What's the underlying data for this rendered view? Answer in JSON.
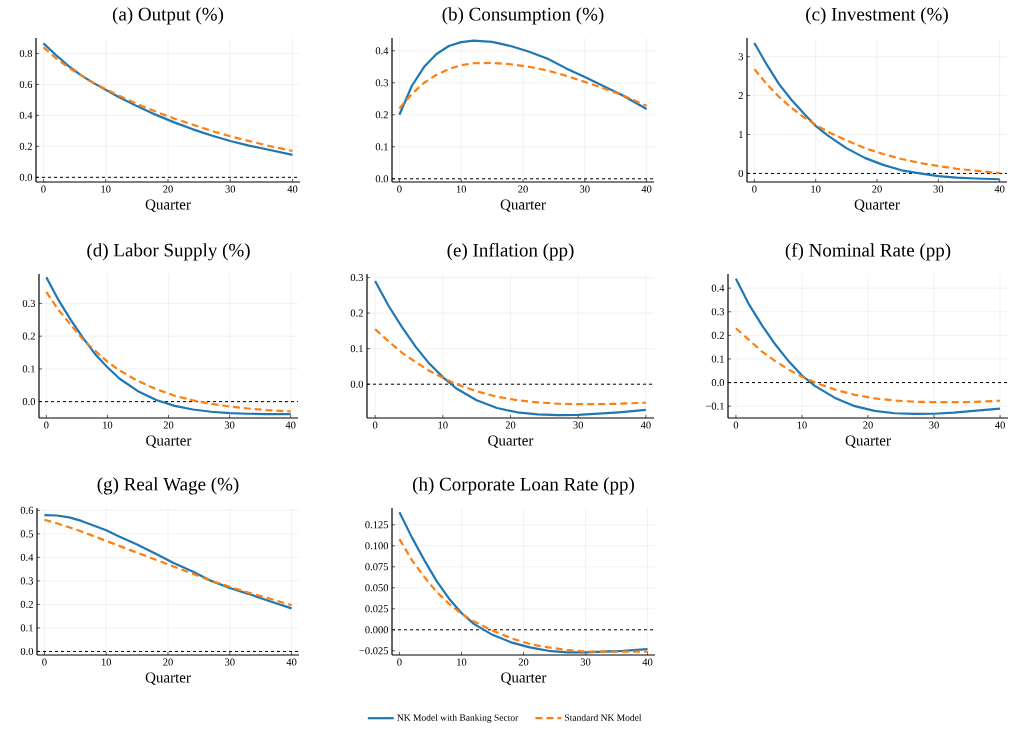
{
  "chart_data": [
    {
      "type": "line",
      "title": "(a) Output (%)",
      "xlabel": "Quarter",
      "x": [
        0,
        2,
        4,
        6,
        8,
        10,
        12,
        15,
        18,
        21,
        24,
        27,
        30,
        33,
        36,
        40
      ],
      "xlim": [
        -1.2,
        41.2
      ],
      "xticks": [
        0,
        10,
        20,
        30,
        40
      ],
      "ylim": [
        -0.03,
        0.9
      ],
      "yticks": [
        {
          "value": 0,
          "label": "0.0"
        },
        0.2,
        0.4,
        0.6,
        0.8
      ],
      "grid": true,
      "ref_lines": [
        {
          "axis": "y",
          "value": 0,
          "color": "#000000",
          "line_style": "dashed"
        }
      ],
      "series": [
        {
          "color": "#1f77b4",
          "line_style": "solid",
          "values": [
            0.865,
            0.79,
            0.72,
            0.66,
            0.61,
            0.565,
            0.52,
            0.46,
            0.405,
            0.355,
            0.31,
            0.27,
            0.235,
            0.205,
            0.18,
            0.145
          ]
        },
        {
          "color": "#ff7f0e",
          "line_style": "dashed",
          "values": [
            0.84,
            0.77,
            0.71,
            0.66,
            0.61,
            0.57,
            0.53,
            0.475,
            0.425,
            0.38,
            0.34,
            0.3,
            0.265,
            0.235,
            0.205,
            0.17
          ]
        }
      ]
    },
    {
      "type": "line",
      "title": "(b) Consumption (%)",
      "xlabel": "Quarter",
      "x": [
        0,
        2,
        4,
        6,
        8,
        10,
        12,
        15,
        18,
        21,
        24,
        27,
        30,
        33,
        36,
        40
      ],
      "xlim": [
        -1.2,
        41.2
      ],
      "xticks": [
        0,
        10,
        20,
        30,
        40
      ],
      "ylim": [
        -0.01,
        0.44
      ],
      "yticks": [
        {
          "value": 0,
          "label": "0.0"
        },
        0.1,
        0.2,
        0.3,
        0.4
      ],
      "grid": true,
      "ref_lines": [
        {
          "axis": "y",
          "value": 0,
          "color": "#000000",
          "line_style": "dashed"
        }
      ],
      "series": [
        {
          "color": "#1f77b4",
          "line_style": "solid",
          "values": [
            0.2,
            0.29,
            0.35,
            0.39,
            0.415,
            0.427,
            0.432,
            0.428,
            0.415,
            0.397,
            0.375,
            0.345,
            0.318,
            0.29,
            0.262,
            0.218
          ]
        },
        {
          "color": "#ff7f0e",
          "line_style": "dashed",
          "values": [
            0.22,
            0.265,
            0.3,
            0.325,
            0.343,
            0.355,
            0.361,
            0.362,
            0.358,
            0.35,
            0.338,
            0.322,
            0.303,
            0.283,
            0.262,
            0.228
          ]
        }
      ]
    },
    {
      "type": "line",
      "title": "(c) Investment (%)",
      "xlabel": "Quarter",
      "x": [
        0,
        2,
        4,
        6,
        8,
        10,
        12,
        15,
        18,
        21,
        24,
        27,
        30,
        33,
        36,
        40
      ],
      "xlim": [
        -1.2,
        41.2
      ],
      "xticks": [
        0,
        10,
        20,
        30,
        40
      ],
      "ylim": [
        -0.22,
        3.48
      ],
      "yticks": [
        0,
        1,
        2,
        3
      ],
      "grid": true,
      "ref_lines": [
        {
          "axis": "y",
          "value": 0,
          "color": "#000000",
          "line_style": "dashed"
        }
      ],
      "series": [
        {
          "color": "#1f77b4",
          "line_style": "solid",
          "values": [
            3.35,
            2.8,
            2.3,
            1.9,
            1.55,
            1.22,
            0.97,
            0.65,
            0.4,
            0.22,
            0.08,
            0.0,
            -0.07,
            -0.11,
            -0.13,
            -0.15
          ]
        },
        {
          "color": "#ff7f0e",
          "line_style": "dashed",
          "values": [
            2.68,
            2.3,
            1.97,
            1.69,
            1.45,
            1.25,
            1.07,
            0.85,
            0.65,
            0.5,
            0.37,
            0.27,
            0.19,
            0.12,
            0.07,
            0.01
          ]
        }
      ]
    },
    {
      "type": "line",
      "title": "(d) Labor Supply (%)",
      "xlabel": "Quarter",
      "x": [
        0,
        2,
        4,
        6,
        8,
        10,
        12,
        15,
        18,
        21,
        24,
        27,
        30,
        33,
        36,
        40
      ],
      "xlim": [
        -1.2,
        41.2
      ],
      "xticks": [
        0,
        10,
        20,
        30,
        40
      ],
      "ylim": [
        -0.05,
        0.39
      ],
      "yticks": [
        {
          "value": 0,
          "label": "0.0"
        },
        0.1,
        0.2,
        0.3
      ],
      "grid": true,
      "ref_lines": [
        {
          "axis": "y",
          "value": 0,
          "color": "#000000",
          "line_style": "dashed"
        }
      ],
      "series": [
        {
          "color": "#1f77b4",
          "line_style": "solid",
          "values": [
            0.38,
            0.31,
            0.25,
            0.195,
            0.145,
            0.105,
            0.07,
            0.032,
            0.005,
            -0.013,
            -0.024,
            -0.031,
            -0.035,
            -0.037,
            -0.038,
            -0.038
          ]
        },
        {
          "color": "#ff7f0e",
          "line_style": "dashed",
          "values": [
            0.335,
            0.28,
            0.235,
            0.19,
            0.155,
            0.122,
            0.095,
            0.063,
            0.038,
            0.018,
            0.004,
            -0.007,
            -0.015,
            -0.021,
            -0.026,
            -0.03
          ]
        }
      ]
    },
    {
      "type": "line",
      "title": "(e) Inflation (pp)",
      "xlabel": "Quarter",
      "x": [
        0,
        2,
        4,
        6,
        8,
        10,
        12,
        15,
        18,
        21,
        24,
        27,
        30,
        33,
        36,
        40
      ],
      "xlim": [
        -1.2,
        41.2
      ],
      "xticks": [
        0,
        10,
        20,
        30,
        40
      ],
      "ylim": [
        -0.095,
        0.31
      ],
      "yticks": [
        {
          "value": 0,
          "label": "0.0"
        },
        0.1,
        0.2,
        0.3
      ],
      "grid": true,
      "ref_lines": [
        {
          "axis": "y",
          "value": 0,
          "color": "#000000",
          "line_style": "dashed"
        }
      ],
      "series": [
        {
          "color": "#1f77b4",
          "line_style": "solid",
          "values": [
            0.29,
            0.22,
            0.16,
            0.105,
            0.058,
            0.02,
            -0.012,
            -0.045,
            -0.067,
            -0.079,
            -0.085,
            -0.087,
            -0.086,
            -0.083,
            -0.079,
            -0.072
          ]
        },
        {
          "color": "#ff7f0e",
          "line_style": "dashed",
          "values": [
            0.155,
            0.12,
            0.088,
            0.062,
            0.038,
            0.018,
            0.0,
            -0.02,
            -0.035,
            -0.045,
            -0.051,
            -0.055,
            -0.056,
            -0.056,
            -0.055,
            -0.052
          ]
        }
      ]
    },
    {
      "type": "line",
      "title": "(f) Nominal Rate (pp)",
      "xlabel": "Quarter",
      "x": [
        0,
        2,
        4,
        6,
        8,
        10,
        12,
        15,
        18,
        21,
        24,
        27,
        30,
        33,
        36,
        40
      ],
      "xlim": [
        -1.2,
        41.2
      ],
      "xticks": [
        0,
        10,
        20,
        30,
        40
      ],
      "ylim": [
        -0.15,
        0.46
      ],
      "yticks": [
        {
          "value": -0.1,
          "label": "−0.1"
        },
        {
          "value": 0,
          "label": "0.0"
        },
        0.1,
        0.2,
        0.3,
        0.4
      ],
      "grid": true,
      "ref_lines": [
        {
          "axis": "y",
          "value": 0,
          "color": "#000000",
          "line_style": "dashed"
        }
      ],
      "series": [
        {
          "color": "#1f77b4",
          "line_style": "solid",
          "values": [
            0.44,
            0.33,
            0.24,
            0.16,
            0.09,
            0.03,
            -0.015,
            -0.065,
            -0.1,
            -0.12,
            -0.13,
            -0.133,
            -0.132,
            -0.127,
            -0.12,
            -0.11
          ]
        },
        {
          "color": "#ff7f0e",
          "line_style": "dashed",
          "values": [
            0.23,
            0.18,
            0.13,
            0.09,
            0.055,
            0.025,
            0.0,
            -0.03,
            -0.052,
            -0.067,
            -0.076,
            -0.081,
            -0.083,
            -0.083,
            -0.082,
            -0.077
          ]
        }
      ]
    },
    {
      "type": "line",
      "title": "(g) Real Wage (%)",
      "xlabel": "Quarter",
      "x": [
        0,
        2,
        4,
        6,
        8,
        10,
        12,
        15,
        18,
        21,
        24,
        27,
        30,
        33,
        36,
        40
      ],
      "xlim": [
        -1.2,
        41.2
      ],
      "xticks": [
        0,
        10,
        20,
        30,
        40
      ],
      "ylim": [
        -0.015,
        0.61
      ],
      "yticks": [
        {
          "value": 0,
          "label": "0.0"
        },
        0.1,
        0.2,
        0.3,
        0.4,
        0.5,
        0.6
      ],
      "grid": true,
      "ref_lines": [
        {
          "axis": "y",
          "value": 0,
          "color": "#000000",
          "line_style": "dashed"
        }
      ],
      "series": [
        {
          "color": "#1f77b4",
          "line_style": "solid",
          "values": [
            0.58,
            0.578,
            0.57,
            0.555,
            0.535,
            0.515,
            0.49,
            0.455,
            0.415,
            0.375,
            0.34,
            0.3,
            0.27,
            0.245,
            0.218,
            0.183
          ]
        },
        {
          "color": "#ff7f0e",
          "line_style": "dashed",
          "values": [
            0.56,
            0.545,
            0.528,
            0.51,
            0.49,
            0.47,
            0.45,
            0.42,
            0.39,
            0.36,
            0.33,
            0.3,
            0.275,
            0.25,
            0.228,
            0.197
          ]
        }
      ]
    },
    {
      "type": "line",
      "title": "(h) Corporate Loan Rate (pp)",
      "xlabel": "Quarter",
      "x": [
        0,
        2,
        4,
        6,
        8,
        10,
        12,
        15,
        18,
        21,
        24,
        27,
        30,
        33,
        36,
        40
      ],
      "xlim": [
        -1.2,
        41.2
      ],
      "xticks": [
        0,
        10,
        20,
        30,
        40
      ],
      "ylim": [
        -0.03,
        0.145
      ],
      "yticks": [
        {
          "value": -0.025,
          "label": "−0.025"
        },
        {
          "value": 0,
          "label": "0.000"
        },
        0.025,
        {
          "value": 0.05,
          "label": "0.050"
        },
        0.075,
        {
          "value": 0.1,
          "label": "0.100"
        },
        0.125
      ],
      "grid": true,
      "legend": "bottom",
      "ref_lines": [
        {
          "axis": "y",
          "value": 0,
          "color": "#000000",
          "line_style": "dashed"
        }
      ],
      "series": [
        {
          "name": "NK Model with Banking Sector",
          "color": "#1f77b4",
          "line_style": "solid",
          "values": [
            0.14,
            0.11,
            0.083,
            0.058,
            0.037,
            0.02,
            0.007,
            -0.006,
            -0.015,
            -0.021,
            -0.025,
            -0.027,
            -0.027,
            -0.026,
            -0.025,
            -0.023
          ]
        },
        {
          "name": "Standard NK Model",
          "color": "#ff7f0e",
          "line_style": "dashed",
          "values": [
            0.108,
            0.083,
            0.063,
            0.045,
            0.031,
            0.019,
            0.01,
            -0.001,
            -0.01,
            -0.017,
            -0.021,
            -0.024,
            -0.026,
            -0.026,
            -0.026,
            -0.026
          ]
        }
      ]
    }
  ]
}
